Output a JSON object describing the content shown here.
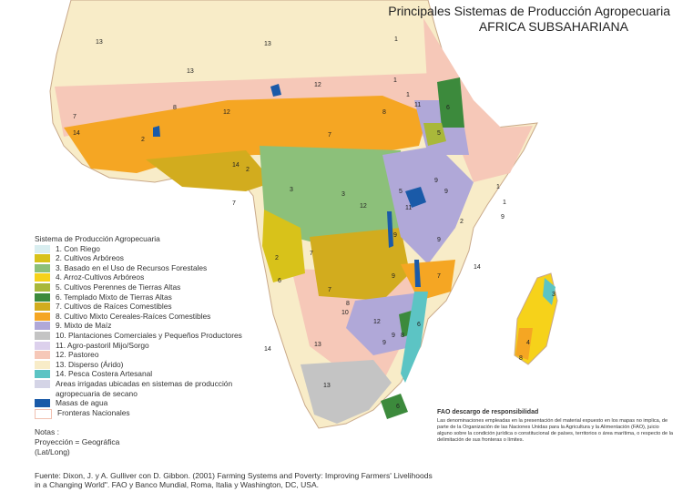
{
  "title": {
    "line1": "Principales Sistemas de Producción Agropecuaria",
    "line2": "AFRICA SUBSAHARIANA"
  },
  "legend": {
    "heading": "Sistema de Producción Agropecuaria",
    "items": [
      {
        "label": "1. Con Riego",
        "color": "#d9eef0"
      },
      {
        "label": "2. Cultivos Arbóreos",
        "color": "#d8c21a"
      },
      {
        "label": "3. Basado en el Uso de Recursos Forestales",
        "color": "#8cc07a"
      },
      {
        "label": "4. Arroz-Cultivos Arbóreos",
        "color": "#f6d21a"
      },
      {
        "label": "5. Cultivos Perennes de Tierras Altas",
        "color": "#a9b83a"
      },
      {
        "label": "6. Templado Mixto de Tierras Altas",
        "color": "#3c8a3c"
      },
      {
        "label": "7. Cultivos de Raíces Comestibles",
        "color": "#d2ac1e"
      },
      {
        "label": "8. Cultivo Mixto Cereales-Raíces Comestibles",
        "color": "#f5a623"
      },
      {
        "label": "9. Mixto de Maíz",
        "color": "#b0a8d8"
      },
      {
        "label": "10. Plantaciones Comerciales y Pequeños Productores",
        "color": "#c4c4c4"
      },
      {
        "label": "11. Agro-pastoril Mijo/Sorgo",
        "color": "#dcd0ec"
      },
      {
        "label": "12. Pastoreo",
        "color": "#f6c8b8"
      },
      {
        "label": "13. Disperso (Árido)",
        "color": "#f8ecc8"
      },
      {
        "label": "14. Pesca Costera Artesanal",
        "color": "#5cc4c4"
      },
      {
        "label": "Areas irrigadas ubicadas en sistemas de producción agropecuaria de secano",
        "color": "#d4d4e6"
      },
      {
        "label": "Masas de agua",
        "color": "#1a5aa8"
      },
      {
        "label": "Fronteras Nacionales",
        "color": "#ffffff"
      }
    ]
  },
  "notes": {
    "heading": "Notas :",
    "line1": "Proyección = Geográfica",
    "line2": "(Lat/Long)"
  },
  "disclaimer": {
    "heading": "FAO descargo de responsibilidad",
    "text": "Las denominaciones empleadas en la presentación del material expuesto en los mapas no implica, de parte de la Organización de las Naciones Unidas para la Agricultura y la Alimentación (FAO), juicio alguno sobre la condición jurídica o constitucional de países, territorios o área marítima, o respecto de la delimitación de sus fronteras o límites."
  },
  "source": {
    "line1": "Fuente: Dixon, J. y A. Gulliver con D. Gibbon. (2001) Farming Systems and Poverty: Improving Farmers' Livelihoods",
    "line2": "in a Changing World\". FAO y Banco Mundial, Roma, Italia y Washington, DC, USA."
  },
  "region_labels": [
    "13",
    "13",
    "13",
    "1",
    "1",
    "12",
    "12",
    "11",
    "7",
    "8",
    "8",
    "7",
    "2",
    "14",
    "14",
    "2",
    "7",
    "3",
    "3",
    "5",
    "6",
    "1",
    "5",
    "9",
    "9",
    "1",
    "9",
    "2",
    "11",
    "12",
    "7",
    "2",
    "6",
    "8",
    "7",
    "9",
    "9",
    "7",
    "14",
    "9",
    "6",
    "12",
    "10",
    "13",
    "14",
    "8",
    "9",
    "13",
    "6",
    "3",
    "4",
    "8",
    "1",
    "9"
  ]
}
